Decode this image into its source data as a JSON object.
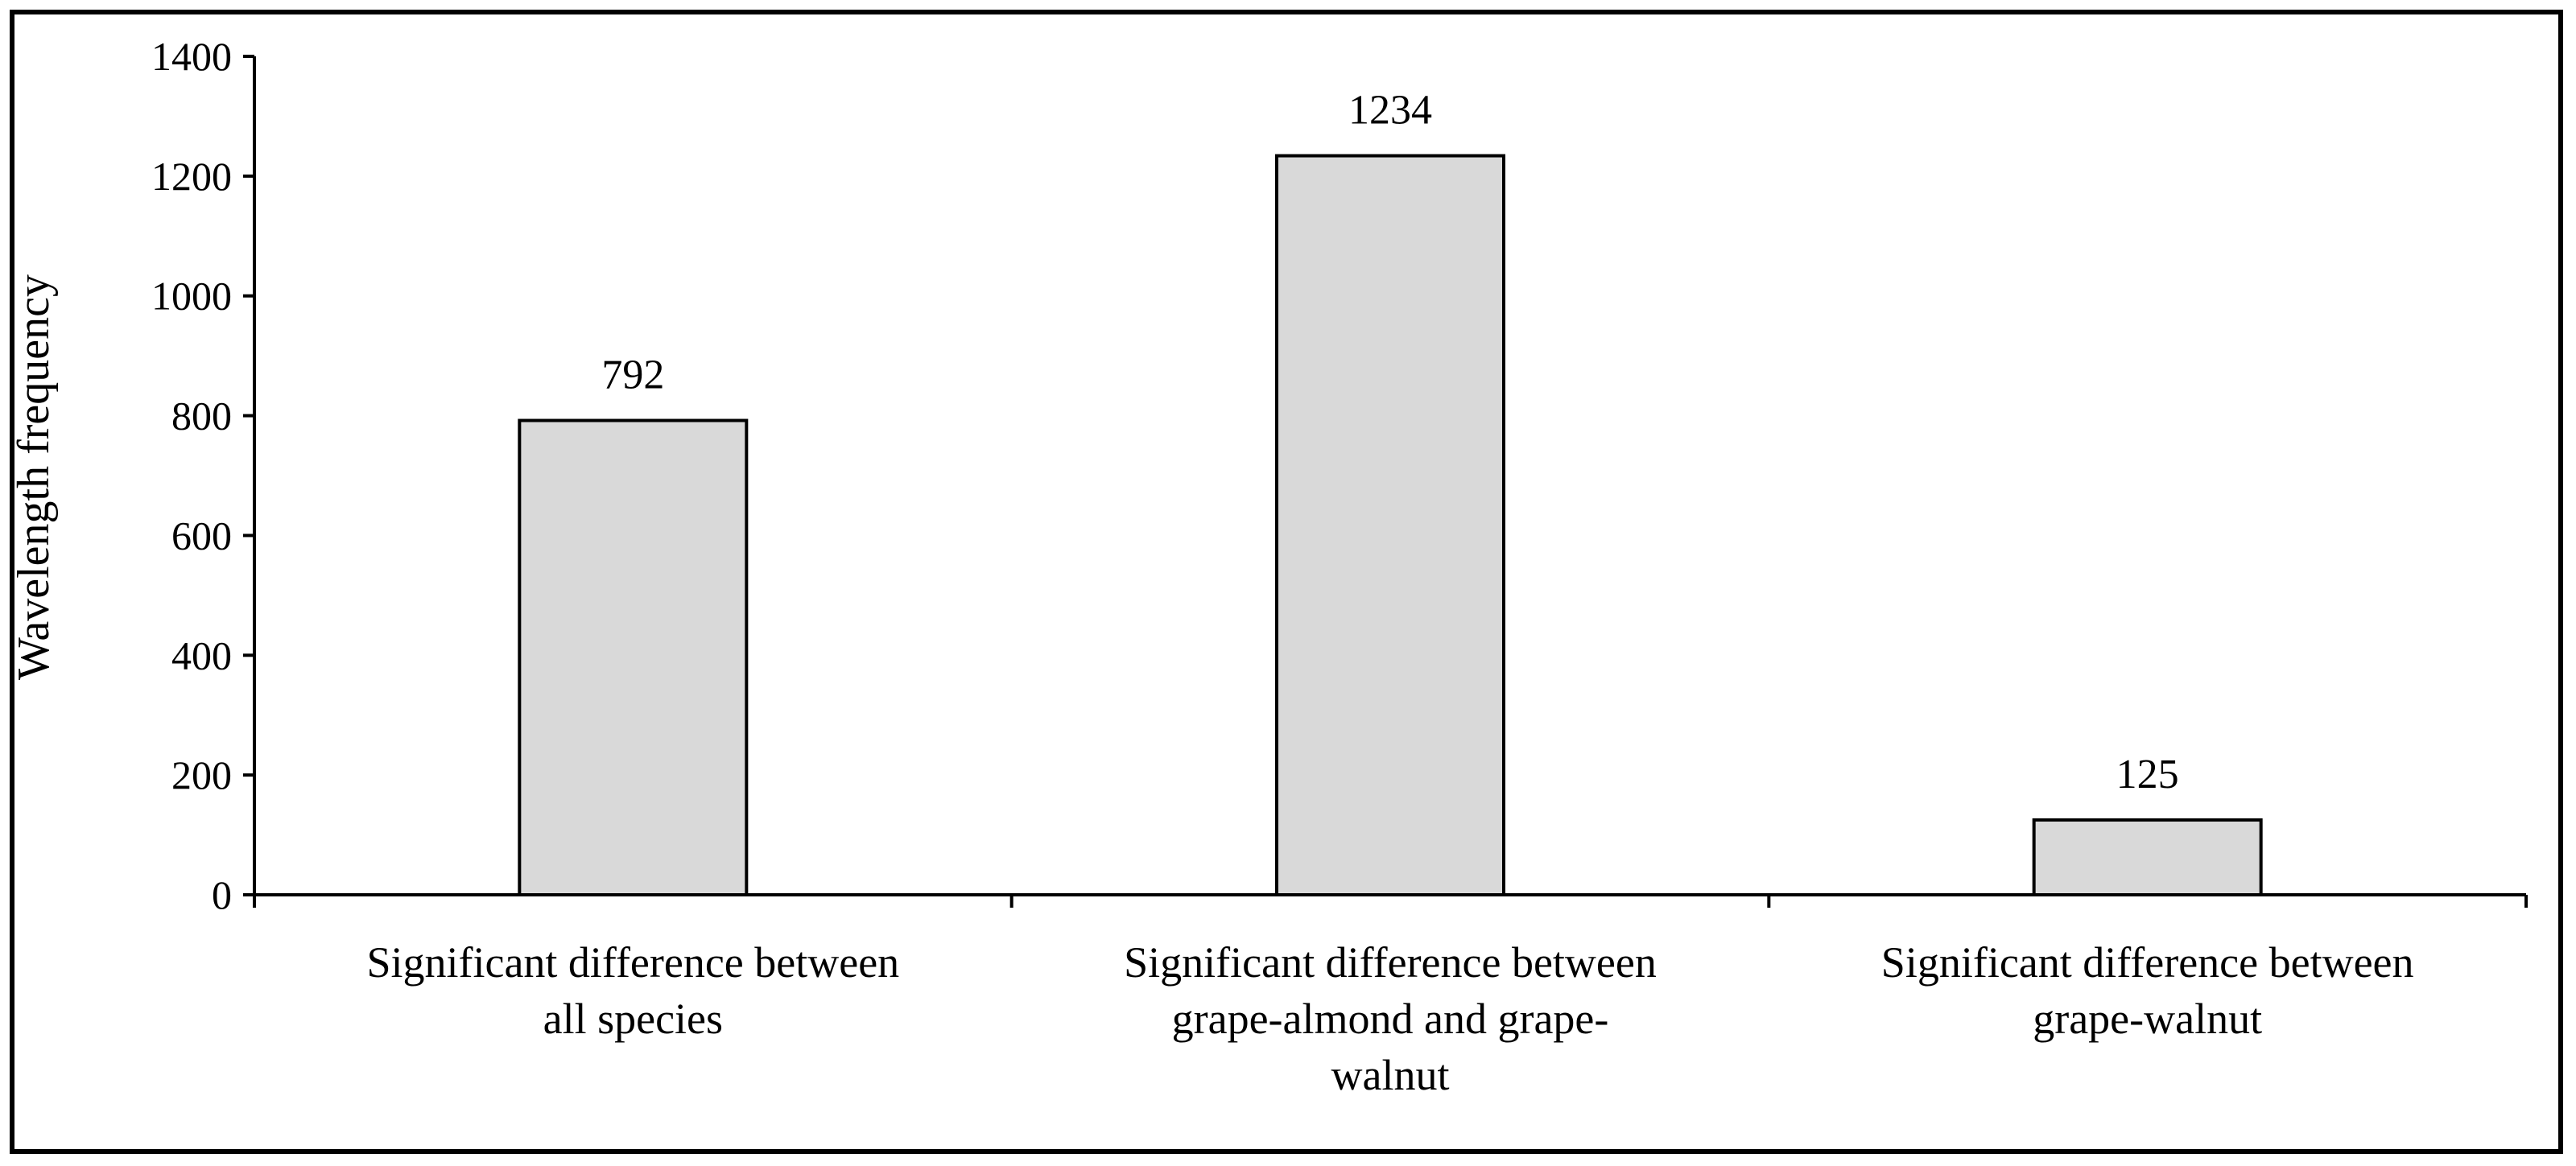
{
  "chart_data": {
    "type": "bar",
    "title": "",
    "xlabel": "",
    "ylabel": "Wavelength frequency",
    "ylim": [
      0,
      1400
    ],
    "yticks": [
      0,
      200,
      400,
      600,
      800,
      1000,
      1200,
      1400
    ],
    "grid": false,
    "legend": "none",
    "categories": [
      [
        "Significant difference between",
        "all species"
      ],
      [
        "Significant difference between",
        "grape-almond and grape-",
        "walnut"
      ],
      [
        "Significant difference between",
        "grape-walnut"
      ]
    ],
    "values": [
      792,
      1234,
      125
    ],
    "data_labels": [
      "792",
      "1234",
      "125"
    ],
    "colors": {
      "bar_fill": "#d9d9d9",
      "bar_stroke": "#000000",
      "axis": "#000000"
    }
  }
}
